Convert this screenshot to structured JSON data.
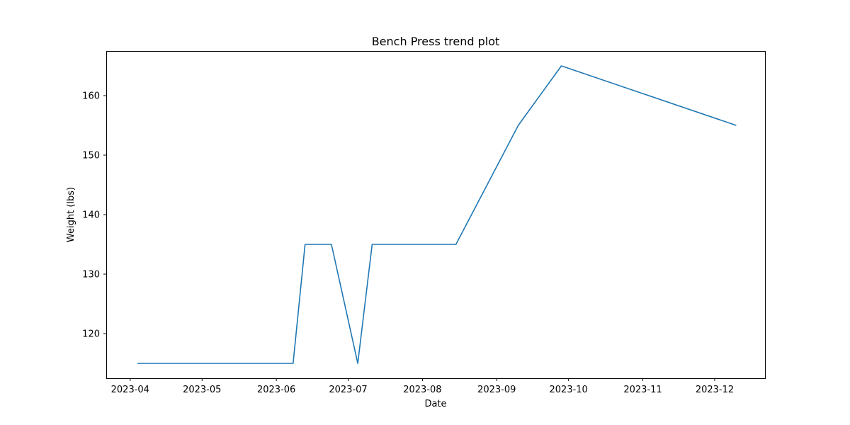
{
  "chart_data": {
    "type": "line",
    "title": "Bench Press trend plot",
    "xlabel": "Date",
    "ylabel": "Weight (lbs)",
    "x_scale": "date",
    "x": [
      "2023-04-04",
      "2023-06-08",
      "2023-06-13",
      "2023-06-24",
      "2023-07-05",
      "2023-07-11",
      "2023-08-15",
      "2023-09-10",
      "2023-09-28",
      "2023-12-10"
    ],
    "series": [
      {
        "values": [
          115,
          115,
          135,
          135,
          115,
          135,
          135,
          155,
          165,
          155
        ],
        "color": "#1f77b4"
      }
    ],
    "xlim": [
      "2023-03-22",
      "2023-12-22"
    ],
    "ylim": [
      112.5,
      167.5
    ],
    "x_ticks": [
      "2023-04",
      "2023-05",
      "2023-06",
      "2023-07",
      "2023-08",
      "2023-09",
      "2023-10",
      "2023-11",
      "2023-12"
    ],
    "y_ticks": [
      120,
      130,
      140,
      150,
      160
    ],
    "grid": false,
    "legend": "none"
  }
}
